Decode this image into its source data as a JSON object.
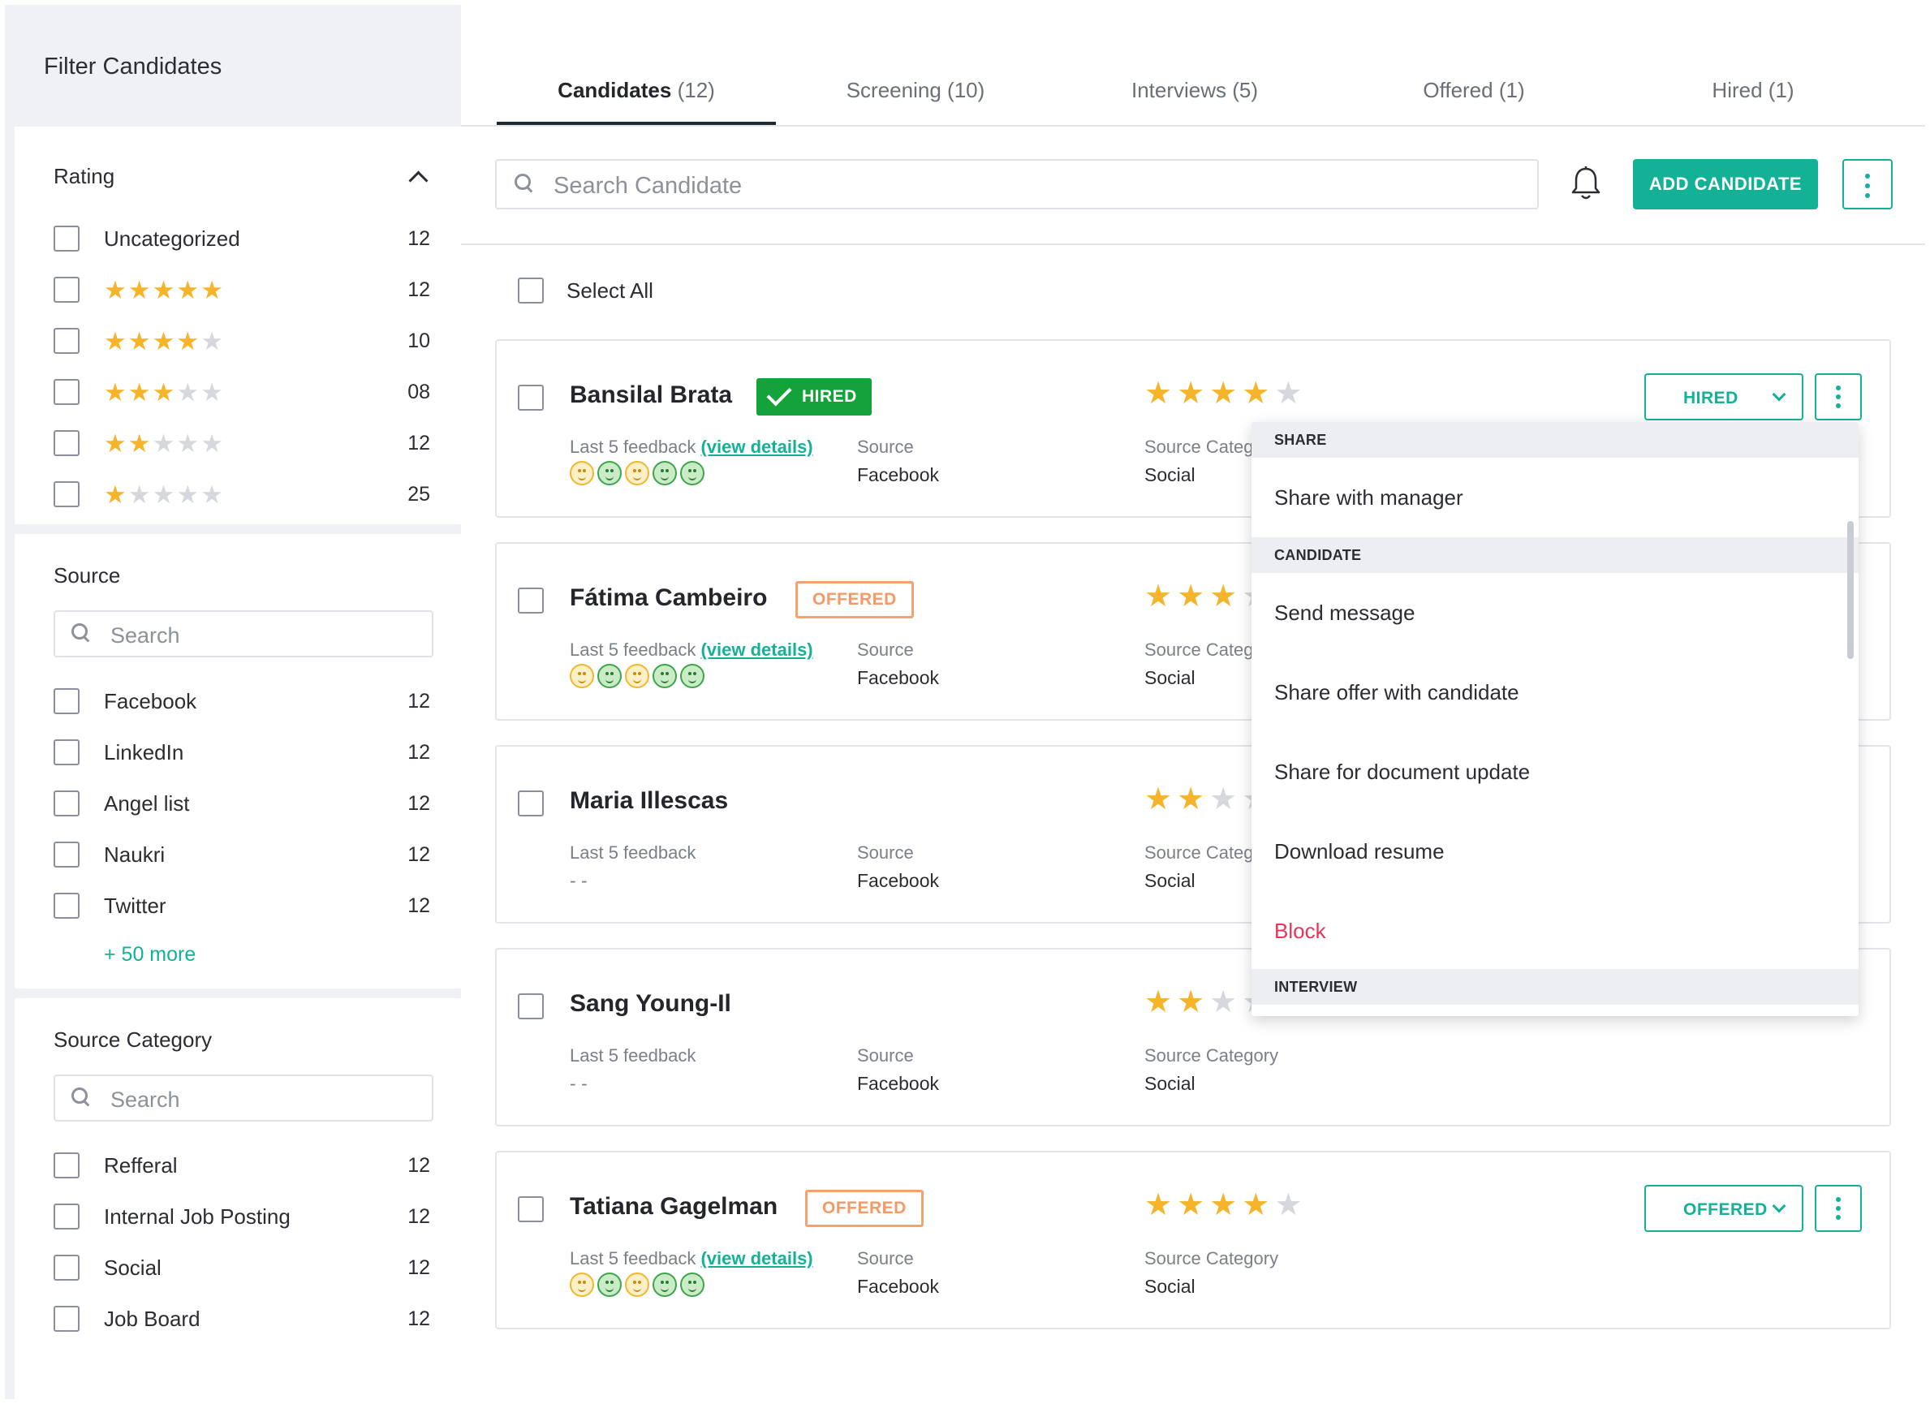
{
  "sidebar": {
    "title": "Filter Candidates",
    "rating": {
      "heading": "Rating",
      "items": [
        {
          "label": "Uncategorized",
          "count": "12"
        },
        {
          "stars": 5,
          "count": "12"
        },
        {
          "stars": 4,
          "count": "10"
        },
        {
          "stars": 3,
          "count": "08"
        },
        {
          "stars": 2,
          "count": "12"
        },
        {
          "stars": 1,
          "count": "25"
        }
      ]
    },
    "source": {
      "heading": "Source",
      "search_placeholder": "Search",
      "items": [
        {
          "label": "Facebook",
          "count": "12"
        },
        {
          "label": "LinkedIn",
          "count": "12"
        },
        {
          "label": "Angel list",
          "count": "12"
        },
        {
          "label": "Naukri",
          "count": "12"
        },
        {
          "label": "Twitter",
          "count": "12"
        }
      ],
      "more": "+ 50 more"
    },
    "source_category": {
      "heading": "Source Category",
      "search_placeholder": "Search",
      "items": [
        {
          "label": "Refferal",
          "count": "12"
        },
        {
          "label": "Internal Job Posting",
          "count": "12"
        },
        {
          "label": "Social",
          "count": "12"
        },
        {
          "label": "Job Board",
          "count": "12"
        }
      ]
    }
  },
  "tabs": [
    {
      "label": "Candidates",
      "count": "(12)"
    },
    {
      "label": "Screening",
      "count": "(10)"
    },
    {
      "label": "Interviews",
      "count": "(5)"
    },
    {
      "label": "Offered",
      "count": "(1)"
    },
    {
      "label": "Hired",
      "count": "(1)"
    }
  ],
  "toolbar": {
    "search_placeholder": "Search Candidate",
    "add_label": "ADD CANDIDATE",
    "select_all": "Select All"
  },
  "labels": {
    "feedback": "Last 5 feedback",
    "view_details": "(view details)",
    "source": "Source",
    "source_category": "Source Category",
    "empty": "- -"
  },
  "candidates": [
    {
      "name": "Bansilal Brata",
      "badge": "HIRED",
      "source": "Facebook",
      "category": "Social",
      "rating": 4,
      "status": "HIRED"
    },
    {
      "name": "Fátima Cambeiro",
      "badge": "OFFERED",
      "source": "Facebook",
      "category": "Social",
      "rating": 3
    },
    {
      "name": "Maria Illescas",
      "source": "Facebook",
      "category": "Social",
      "rating": 2
    },
    {
      "name": "Sang Young-Il",
      "source": "Facebook",
      "category": "Social",
      "rating": 2
    },
    {
      "name": "Tatiana Gagelman",
      "badge": "OFFERED",
      "source": "Facebook",
      "category": "Social",
      "rating": 4,
      "status": "OFFERED"
    }
  ],
  "menu": {
    "share_heading": "SHARE",
    "share_manager": "Share with manager",
    "candidate_heading": "CANDIDATE",
    "send_message": "Send message",
    "share_offer": "Share offer with candidate",
    "share_document": "Share for document update",
    "download_resume": "Download resume",
    "block": "Block",
    "interview_heading": "INTERVIEW"
  },
  "colors": {
    "accent": "#13b296",
    "hired": "#13a33a",
    "offered": "#f6a170",
    "star": "#f6b42b",
    "danger": "#e8335c"
  }
}
